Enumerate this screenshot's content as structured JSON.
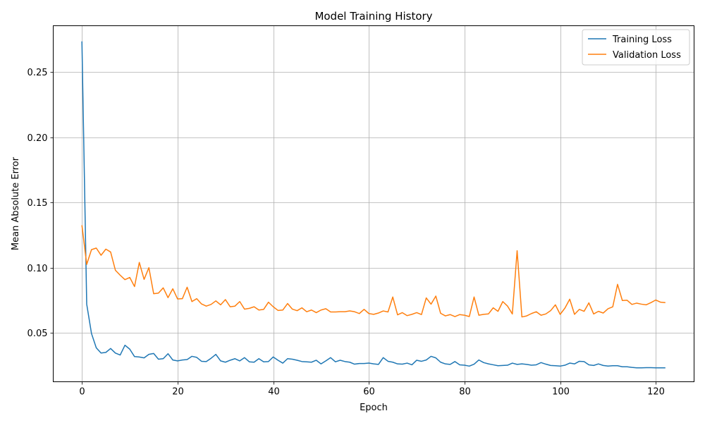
{
  "chart_data": {
    "type": "line",
    "title": "Model Training History",
    "xlabel": "Epoch",
    "ylabel": "Mean Absolute Error",
    "xlim": [
      -6,
      128
    ],
    "ylim": [
      0.0125,
      0.2855
    ],
    "xticks": [
      0,
      20,
      40,
      60,
      80,
      100,
      120
    ],
    "xtick_labels": [
      "0",
      "20",
      "40",
      "60",
      "80",
      "100",
      "120"
    ],
    "yticks": [
      0.05,
      0.1,
      0.15,
      0.2,
      0.25
    ],
    "ytick_labels": [
      "0.05",
      "0.10",
      "0.15",
      "0.20",
      "0.25"
    ],
    "grid": true,
    "legend_position": "top-right",
    "x": [
      0,
      1,
      2,
      3,
      4,
      5,
      6,
      7,
      8,
      9,
      10,
      11,
      12,
      13,
      14,
      15,
      16,
      17,
      18,
      19,
      20,
      21,
      22,
      23,
      24,
      25,
      26,
      27,
      28,
      29,
      30,
      31,
      32,
      33,
      34,
      35,
      36,
      37,
      38,
      39,
      40,
      41,
      42,
      43,
      44,
      45,
      46,
      47,
      48,
      49,
      50,
      51,
      52,
      53,
      54,
      55,
      56,
      57,
      58,
      59,
      60,
      61,
      62,
      63,
      64,
      65,
      66,
      67,
      68,
      69,
      70,
      71,
      72,
      73,
      74,
      75,
      76,
      77,
      78,
      79,
      80,
      81,
      82,
      83,
      84,
      85,
      86,
      87,
      88,
      89,
      90,
      91,
      92,
      93,
      94,
      95,
      96,
      97,
      98,
      99,
      100,
      101,
      102,
      103,
      104,
      105,
      106,
      107,
      108,
      109,
      110,
      111,
      112,
      113,
      114,
      115,
      116,
      117,
      118,
      119,
      120,
      121,
      122
    ],
    "series": [
      {
        "name": "Training Loss",
        "color": "#1f77b4",
        "values": [
          0.2735,
          0.072,
          0.0495,
          0.0385,
          0.0345,
          0.035,
          0.038,
          0.0345,
          0.033,
          0.0405,
          0.0375,
          0.0318,
          0.0315,
          0.0308,
          0.0335,
          0.0342,
          0.0298,
          0.0302,
          0.034,
          0.0292,
          0.0285,
          0.0292,
          0.0295,
          0.032,
          0.0312,
          0.0282,
          0.028,
          0.0305,
          0.0335,
          0.0285,
          0.0275,
          0.029,
          0.0302,
          0.0285,
          0.031,
          0.0278,
          0.0275,
          0.0302,
          0.0278,
          0.028,
          0.0315,
          0.029,
          0.0268,
          0.0302,
          0.0298,
          0.029,
          0.028,
          0.0278,
          0.0275,
          0.029,
          0.0262,
          0.0285,
          0.031,
          0.0278,
          0.029,
          0.028,
          0.0275,
          0.026,
          0.0265,
          0.0265,
          0.0268,
          0.0262,
          0.0258,
          0.031,
          0.0282,
          0.0275,
          0.0262,
          0.026,
          0.0268,
          0.0255,
          0.029,
          0.0282,
          0.0292,
          0.032,
          0.0308,
          0.0275,
          0.0262,
          0.0258,
          0.028,
          0.0255,
          0.0252,
          0.0245,
          0.026,
          0.0292,
          0.0272,
          0.0262,
          0.0255,
          0.0248,
          0.025,
          0.0252,
          0.0268,
          0.0258,
          0.0262,
          0.0258,
          0.0252,
          0.0255,
          0.0272,
          0.026,
          0.025,
          0.0248,
          0.0245,
          0.0252,
          0.0268,
          0.0262,
          0.0282,
          0.028,
          0.0255,
          0.025,
          0.0262,
          0.025,
          0.0245,
          0.0248,
          0.0248,
          0.024,
          0.024,
          0.0235,
          0.0232,
          0.0232,
          0.0233,
          0.0233,
          0.0232,
          0.0232,
          0.0232
        ]
      },
      {
        "name": "Validation Loss",
        "color": "#ff7f0e",
        "values": [
          0.1325,
          0.1025,
          0.1138,
          0.115,
          0.1095,
          0.1142,
          0.112,
          0.098,
          0.0942,
          0.0908,
          0.0925,
          0.0855,
          0.104,
          0.091,
          0.1,
          0.08,
          0.0805,
          0.0845,
          0.077,
          0.0838,
          0.076,
          0.0762,
          0.085,
          0.074,
          0.0762,
          0.0722,
          0.0705,
          0.0718,
          0.0745,
          0.0715,
          0.0755,
          0.07,
          0.0705,
          0.074,
          0.0682,
          0.0688,
          0.07,
          0.0675,
          0.068,
          0.0735,
          0.07,
          0.0672,
          0.0675,
          0.0725,
          0.0682,
          0.067,
          0.0692,
          0.0662,
          0.0675,
          0.0655,
          0.0675,
          0.0685,
          0.066,
          0.066,
          0.0662,
          0.0662,
          0.0668,
          0.0662,
          0.0648,
          0.068,
          0.0648,
          0.0642,
          0.0652,
          0.0668,
          0.066,
          0.0775,
          0.0638,
          0.0655,
          0.0632,
          0.0642,
          0.0655,
          0.064,
          0.0768,
          0.072,
          0.0782,
          0.065,
          0.063,
          0.064,
          0.0625,
          0.064,
          0.0635,
          0.0625,
          0.0775,
          0.0635,
          0.0642,
          0.0645,
          0.0692,
          0.0665,
          0.074,
          0.0705,
          0.0645,
          0.113,
          0.0622,
          0.063,
          0.0648,
          0.0662,
          0.0635,
          0.0645,
          0.067,
          0.0715,
          0.0642,
          0.069,
          0.0758,
          0.0642,
          0.068,
          0.0665,
          0.073,
          0.0645,
          0.0665,
          0.0652,
          0.0685,
          0.07,
          0.0872,
          0.0748,
          0.075,
          0.0718,
          0.0728,
          0.072,
          0.0715,
          0.0732,
          0.0752,
          0.0735,
          0.0732
        ]
      }
    ]
  }
}
